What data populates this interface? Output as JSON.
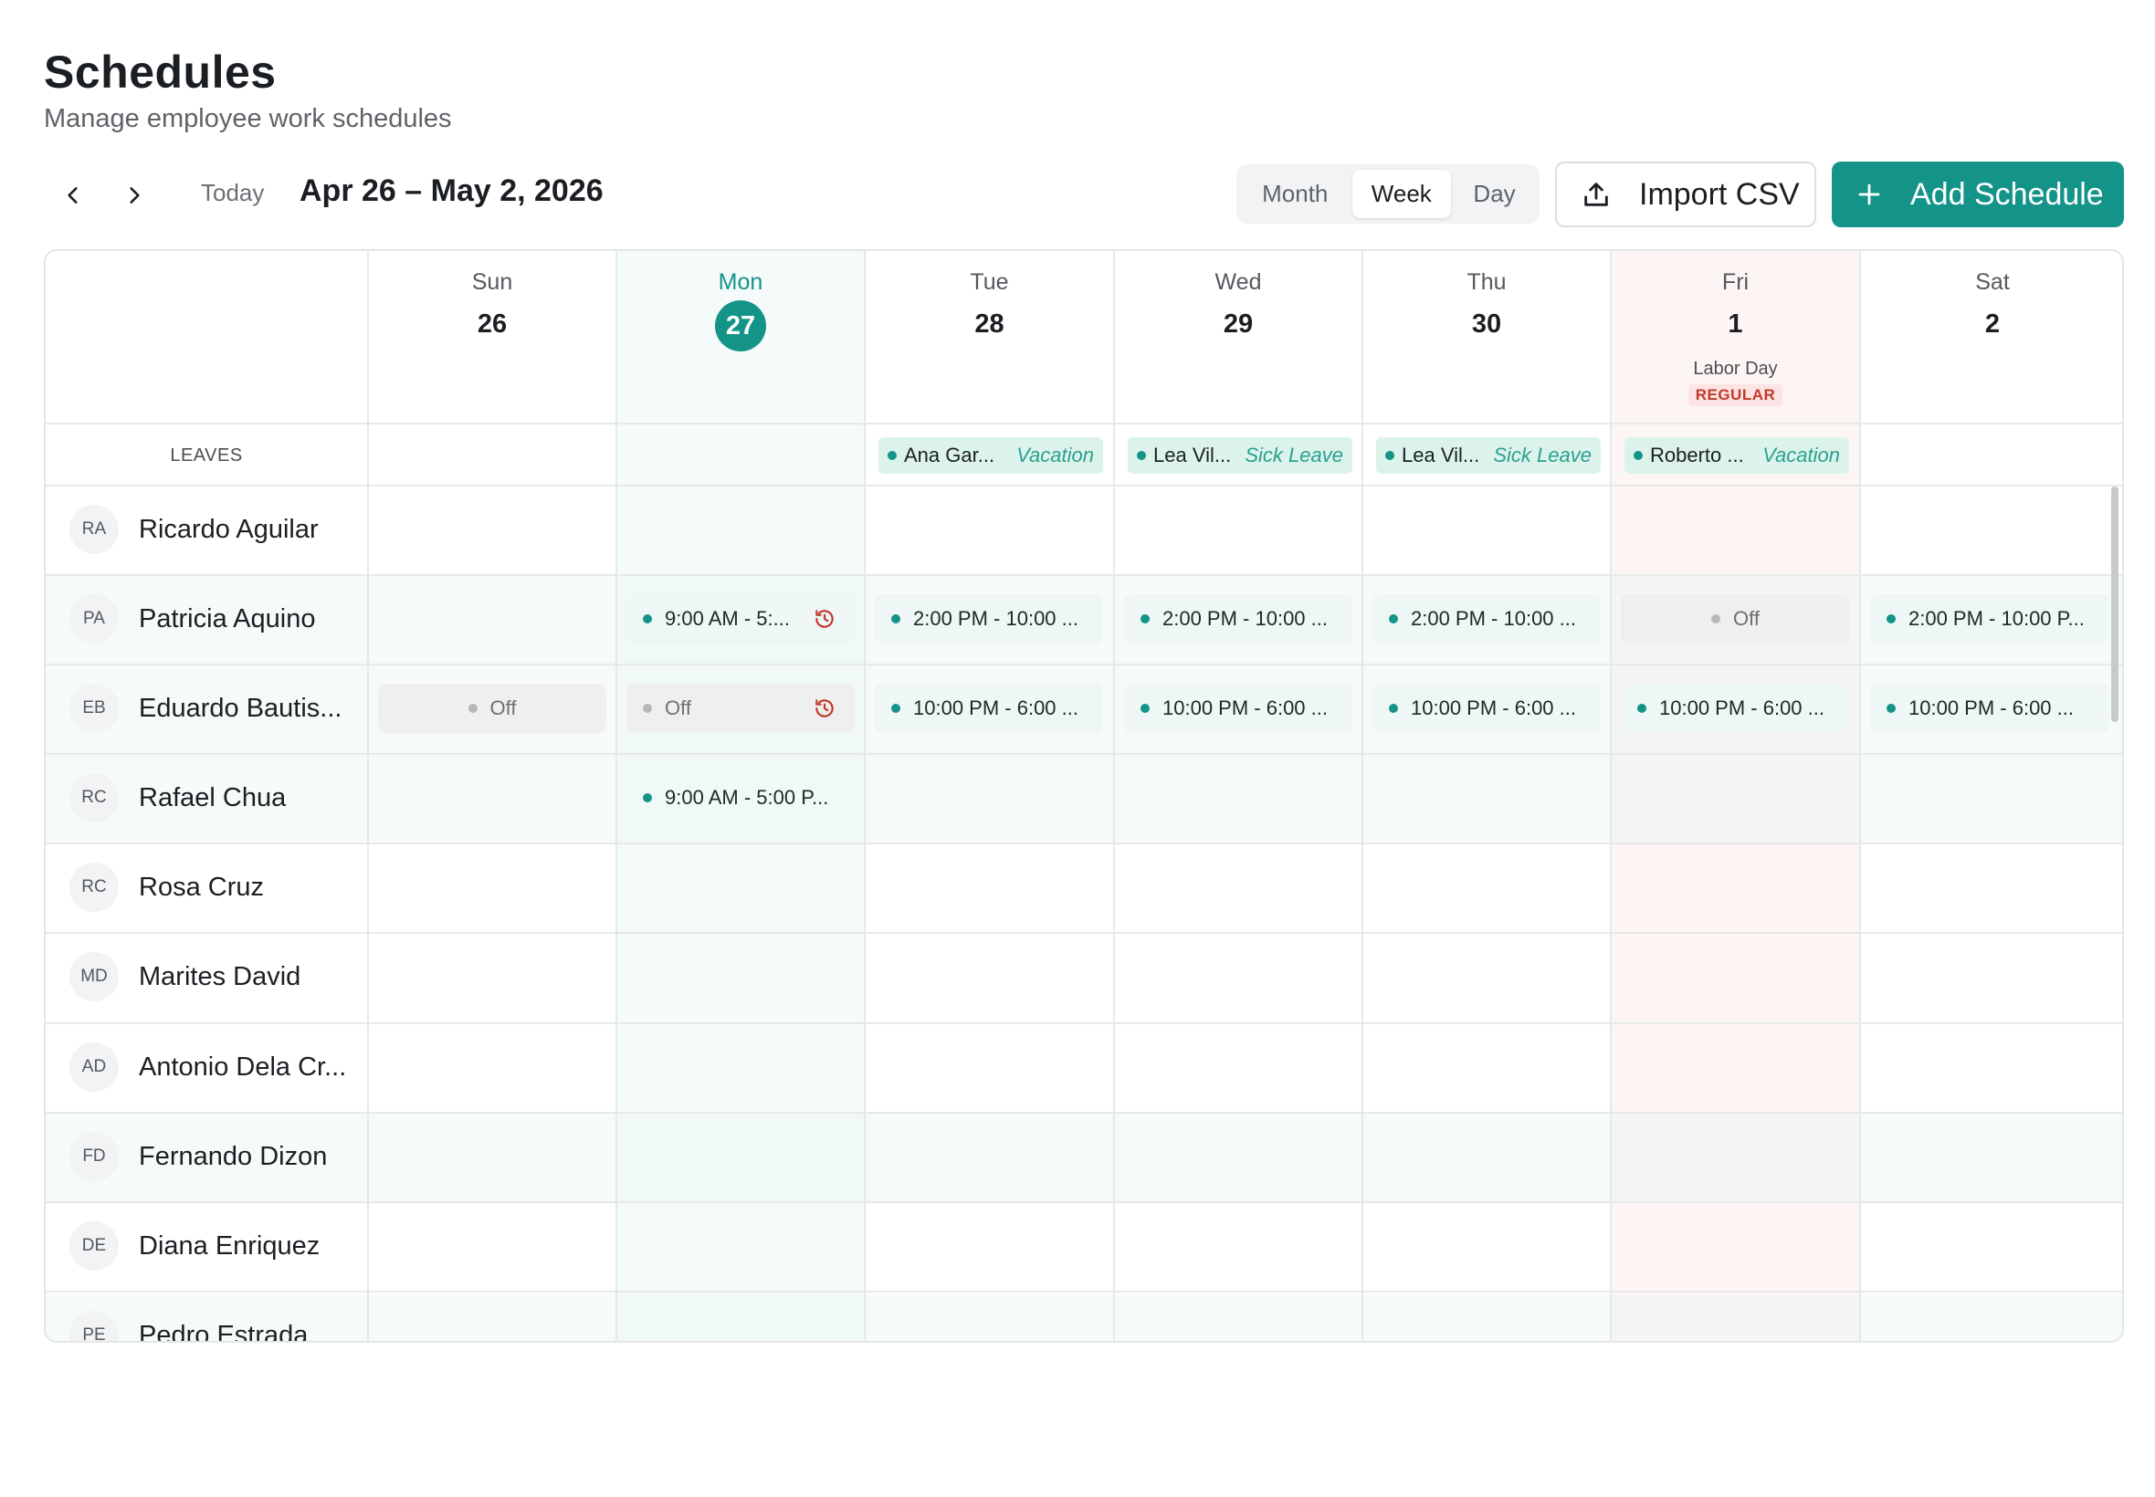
{
  "header": {
    "title": "Schedules",
    "subtitle": "Manage employee work schedules"
  },
  "toolbar": {
    "today_label": "Today",
    "date_range": "Apr 26 – May 2, 2026",
    "views": [
      "Month",
      "Week",
      "Day"
    ],
    "active_view": "Week",
    "import_label": "Import CSV",
    "add_label": "Add Schedule"
  },
  "colors": {
    "accent": "#149489",
    "holiday_bg": "#fdf4f3",
    "holiday_badge": "#c0392b"
  },
  "days": [
    {
      "dow": "Sun",
      "num": "26"
    },
    {
      "dow": "Mon",
      "num": "27",
      "today": true
    },
    {
      "dow": "Tue",
      "num": "28"
    },
    {
      "dow": "Wed",
      "num": "29"
    },
    {
      "dow": "Thu",
      "num": "30"
    },
    {
      "dow": "Fri",
      "num": "1",
      "holiday": "Labor Day",
      "holiday_type": "REGULAR"
    },
    {
      "dow": "Sat",
      "num": "2"
    }
  ],
  "leaves": {
    "label": "LEAVES",
    "items": [
      {
        "name": "Ana Gar...",
        "type": "Vacation"
      },
      {
        "name": "Lea Vil...",
        "type": "Sick Leave"
      },
      {
        "name": "Lea Vil...",
        "type": "Sick Leave"
      },
      {
        "name": "Roberto ...",
        "type": "Vacation"
      }
    ]
  },
  "employees": [
    {
      "initials": "RA",
      "name": "Ricardo Aguilar"
    },
    {
      "initials": "PA",
      "name": "Patricia Aquino"
    },
    {
      "initials": "EB",
      "name": "Eduardo Bautis..."
    },
    {
      "initials": "RC",
      "name": "Rafael Chua"
    },
    {
      "initials": "RC",
      "name": "Rosa Cruz"
    },
    {
      "initials": "MD",
      "name": "Marites David"
    },
    {
      "initials": "AD",
      "name": "Antonio Dela Cr..."
    },
    {
      "initials": "FD",
      "name": "Fernando Dizon"
    },
    {
      "initials": "DE",
      "name": "Diana Enriquez"
    },
    {
      "initials": "PE",
      "name": "Pedro Estrada"
    }
  ],
  "shifts": {
    "patricia": [
      "9:00 AM - 5:...",
      "2:00 PM - 10:00 ...",
      "2:00 PM - 10:00 ...",
      "2:00 PM - 10:00 ...",
      "Off",
      "2:00 PM - 10:00 P..."
    ],
    "eduardo": [
      "Off",
      "Off",
      "10:00 PM - 6:00 ...",
      "10:00 PM - 6:00 ...",
      "10:00 PM - 6:00 ...",
      "10:00 PM - 6:00 ...",
      "10:00 PM - 6:00 ..."
    ],
    "rafael": [
      "9:00 AM - 5:00 P..."
    ]
  }
}
